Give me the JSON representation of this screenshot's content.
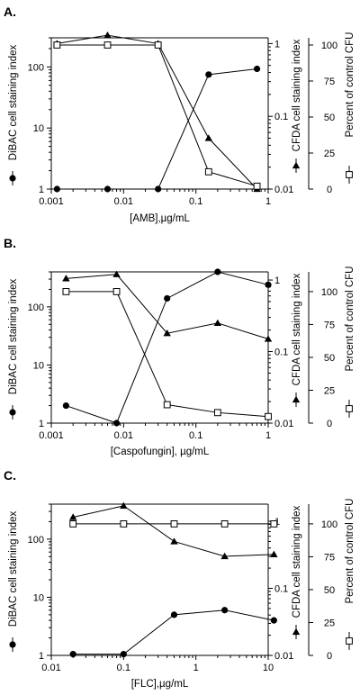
{
  "chart_data": [
    {
      "type": "line",
      "panel": "A.",
      "xlabel": "[AMB],µg/mL",
      "xscale": "log",
      "xlim": [
        0.001,
        1
      ],
      "x_ticks": [
        "0.001",
        "0.01",
        "0.1",
        "1"
      ],
      "y_left": {
        "label": "DiBAC cell staining index",
        "scale": "log",
        "lim": [
          1,
          300
        ],
        "ticks": [
          "1",
          "10",
          "100"
        ]
      },
      "y_right1": {
        "label": "CFDA cell staining index",
        "scale": "log",
        "lim": [
          0.01,
          1.2
        ],
        "ticks": [
          "0.01",
          "0.1",
          "1"
        ]
      },
      "y_right2": {
        "label": "Percent of control CFU",
        "scale": "linear",
        "lim": [
          0,
          105
        ],
        "ticks": [
          "0",
          "25",
          "50",
          "75",
          "100"
        ]
      },
      "series": [
        {
          "name": "DiBAC",
          "marker": "circle",
          "axis": "left",
          "x": [
            0.0012,
            0.006,
            0.03,
            0.15,
            0.7
          ],
          "y": [
            1,
            1,
            1,
            75,
            93
          ]
        },
        {
          "name": "CFDA",
          "marker": "triangle",
          "axis": "right1",
          "x": [
            0.0012,
            0.006,
            0.03,
            0.15,
            0.7
          ],
          "y": [
            1.0,
            1.3,
            1.0,
            0.05,
            0.01
          ]
        },
        {
          "name": "CFU",
          "marker": "square",
          "axis": "right2",
          "x": [
            0.0012,
            0.006,
            0.03,
            0.15,
            0.7
          ],
          "y": [
            100,
            100,
            100,
            12,
            2
          ]
        }
      ]
    },
    {
      "type": "line",
      "panel": "B.",
      "xlabel": "[Caspofungin], µg/mL",
      "xscale": "log",
      "xlim": [
        0.001,
        1
      ],
      "x_ticks": [
        "0.001",
        "0.01",
        "0.1",
        "1"
      ],
      "y_left": {
        "label": "DiBAC cell staining index",
        "scale": "log",
        "lim": [
          1,
          400
        ],
        "ticks": [
          "1",
          "10",
          "100"
        ]
      },
      "y_right1": {
        "label": "CFDA cell staining index",
        "scale": "log",
        "lim": [
          0.01,
          1.3
        ],
        "ticks": [
          "0.01",
          "0.1",
          "1"
        ]
      },
      "y_right2": {
        "label": "Percent of control CFU",
        "scale": "linear",
        "lim": [
          0,
          115
        ],
        "ticks": [
          "0",
          "25",
          "50",
          "75",
          "100"
        ]
      },
      "series": [
        {
          "name": "DiBAC",
          "marker": "circle",
          "axis": "left",
          "x": [
            0.0016,
            0.008,
            0.04,
            0.2,
            1.0
          ],
          "y": [
            2,
            1,
            140,
            400,
            240
          ]
        },
        {
          "name": "CFDA",
          "marker": "triangle",
          "axis": "right1",
          "x": [
            0.0016,
            0.008,
            0.04,
            0.2,
            1.0
          ],
          "y": [
            1.05,
            1.2,
            0.18,
            0.25,
            0.15
          ]
        },
        {
          "name": "CFU",
          "marker": "square",
          "axis": "right2",
          "x": [
            0.0016,
            0.008,
            0.04,
            0.2,
            1.0
          ],
          "y": [
            100,
            100,
            14,
            8,
            5
          ]
        }
      ]
    },
    {
      "type": "line",
      "panel": "C.",
      "xlabel": "[FLC],µg/mL",
      "xscale": "log",
      "xlim": [
        0.01,
        10
      ],
      "x_ticks": [
        "0.01",
        "0.1",
        "1",
        "10"
      ],
      "y_left": {
        "label": "DiBAC cell staining index",
        "scale": "log",
        "lim": [
          1,
          400
        ],
        "ticks": [
          "1",
          "10",
          "100"
        ]
      },
      "y_right1": {
        "label": "CFDA cell staining index",
        "scale": "log",
        "lim": [
          0.01,
          1.8
        ],
        "ticks": [
          "0.01",
          "0.1",
          "1"
        ]
      },
      "y_right2": {
        "label": "Percent of control CFU",
        "scale": "linear",
        "lim": [
          0,
          115
        ],
        "ticks": [
          "0",
          "25",
          "50",
          "75",
          "100"
        ]
      },
      "series": [
        {
          "name": "DiBAC",
          "marker": "circle",
          "axis": "left",
          "x": [
            0.02,
            0.1,
            0.5,
            2.5,
            12
          ],
          "y": [
            1.05,
            1.05,
            5,
            6,
            4
          ]
        },
        {
          "name": "CFDA",
          "marker": "triangle",
          "axis": "right1",
          "x": [
            0.02,
            0.1,
            0.5,
            2.5,
            12
          ],
          "y": [
            1.15,
            1.7,
            0.5,
            0.3,
            0.32
          ]
        },
        {
          "name": "CFU",
          "marker": "square",
          "axis": "right2",
          "x": [
            0.02,
            0.1,
            0.5,
            2.5,
            12
          ],
          "y": [
            100,
            100,
            100,
            100,
            100
          ]
        }
      ]
    }
  ]
}
